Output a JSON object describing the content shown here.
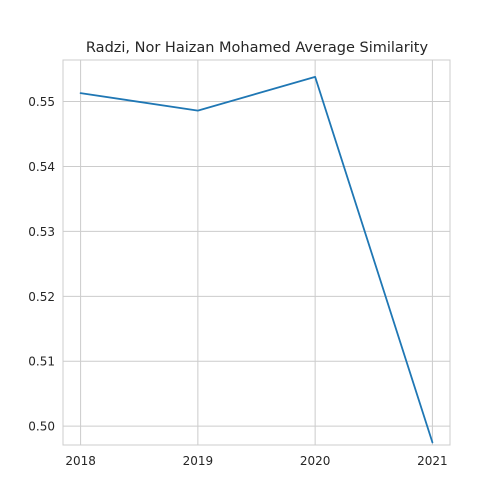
{
  "chart_data": {
    "type": "line",
    "title": "Radzi, Nor Haizan Mohamed Average Similarity",
    "xlabel": "",
    "ylabel": "",
    "x": [
      2018,
      2019,
      2020,
      2021
    ],
    "x_tick_labels": [
      "2018",
      "2019",
      "2020",
      "2021"
    ],
    "series": [
      {
        "values": [
          0.5513,
          0.5486,
          0.5538,
          0.4975
        ],
        "color": "#1f77b4"
      }
    ],
    "y_ticks": [
      0.5,
      0.51,
      0.52,
      0.53,
      0.54,
      0.55
    ],
    "y_tick_labels": [
      "0.50",
      "0.51",
      "0.52",
      "0.53",
      "0.54",
      "0.55"
    ],
    "xlim": [
      2017.85,
      2021.15
    ],
    "ylim": [
      0.4971,
      0.5564
    ],
    "grid": true,
    "style": {
      "grid_color": "#cccccc",
      "text_color": "#262626"
    }
  }
}
